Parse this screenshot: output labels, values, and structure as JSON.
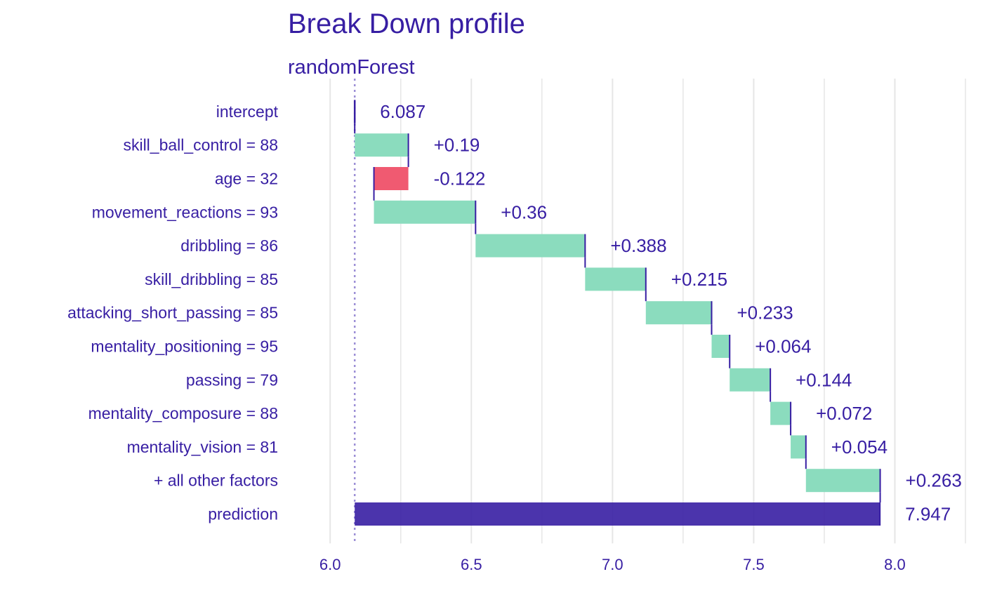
{
  "chart_data": {
    "type": "waterfall",
    "title": "Break Down profile",
    "subtitle": "randomForest",
    "xlim": [
      5.9,
      8.25
    ],
    "x_ticks": [
      {
        "value": 6.0,
        "label": "6.0"
      },
      {
        "value": 6.5,
        "label": "6.5"
      },
      {
        "value": 7.0,
        "label": "7.0"
      },
      {
        "value": 7.5,
        "label": "7.5"
      },
      {
        "value": 8.0,
        "label": "8.0"
      }
    ],
    "grid": true,
    "baseline": 6.087,
    "rows": [
      {
        "variable": "intercept",
        "start": 6.087,
        "end": 6.087,
        "label": "6.087",
        "kind": "intercept"
      },
      {
        "variable": "skill_ball_control = 88",
        "start": 6.087,
        "end": 6.277,
        "label": "+0.19",
        "kind": "positive"
      },
      {
        "variable": "age = 32",
        "start": 6.277,
        "end": 6.155,
        "label": "-0.122",
        "kind": "negative"
      },
      {
        "variable": "movement_reactions = 93",
        "start": 6.155,
        "end": 6.515,
        "label": "+0.36",
        "kind": "positive"
      },
      {
        "variable": "dribbling = 86",
        "start": 6.515,
        "end": 6.903,
        "label": "+0.388",
        "kind": "positive"
      },
      {
        "variable": "skill_dribbling = 85",
        "start": 6.903,
        "end": 7.118,
        "label": "+0.215",
        "kind": "positive"
      },
      {
        "variable": "attacking_short_passing = 85",
        "start": 7.118,
        "end": 7.351,
        "label": "+0.233",
        "kind": "positive"
      },
      {
        "variable": "mentality_positioning = 95",
        "start": 7.351,
        "end": 7.415,
        "label": "+0.064",
        "kind": "positive"
      },
      {
        "variable": "passing = 79",
        "start": 7.415,
        "end": 7.559,
        "label": "+0.144",
        "kind": "positive"
      },
      {
        "variable": "mentality_composure = 88",
        "start": 7.559,
        "end": 7.631,
        "label": "+0.072",
        "kind": "positive"
      },
      {
        "variable": "mentality_vision = 81",
        "start": 7.631,
        "end": 7.685,
        "label": "+0.054",
        "kind": "positive"
      },
      {
        "variable": "+ all other factors",
        "start": 7.685,
        "end": 7.948,
        "label": "+0.263",
        "kind": "positive"
      },
      {
        "variable": "prediction",
        "start": 6.087,
        "end": 7.947,
        "label": "7.947",
        "kind": "prediction"
      }
    ],
    "colors": {
      "positive": "#8bdcbe",
      "negative": "#f05a71",
      "prediction": "#371ea3",
      "text": "#371ea3",
      "grid": "#e6e6e6"
    }
  }
}
